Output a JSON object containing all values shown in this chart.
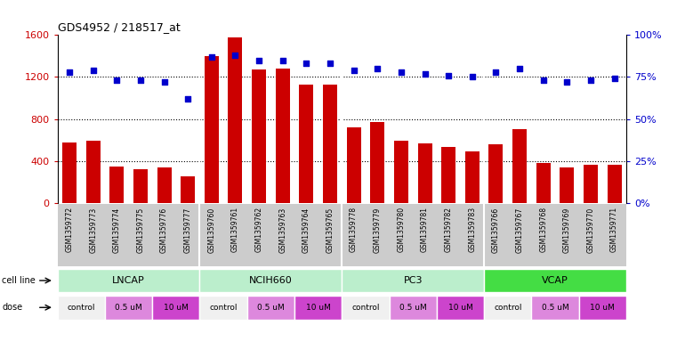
{
  "title": "GDS4952 / 218517_at",
  "samples": [
    "GSM1359772",
    "GSM1359773",
    "GSM1359774",
    "GSM1359775",
    "GSM1359776",
    "GSM1359777",
    "GSM1359760",
    "GSM1359761",
    "GSM1359762",
    "GSM1359763",
    "GSM1359764",
    "GSM1359765",
    "GSM1359778",
    "GSM1359779",
    "GSM1359780",
    "GSM1359781",
    "GSM1359782",
    "GSM1359783",
    "GSM1359766",
    "GSM1359767",
    "GSM1359768",
    "GSM1359769",
    "GSM1359770",
    "GSM1359771"
  ],
  "counts": [
    580,
    590,
    350,
    320,
    340,
    250,
    1400,
    1580,
    1270,
    1280,
    1130,
    1130,
    720,
    770,
    590,
    570,
    530,
    490,
    560,
    700,
    380,
    340,
    360,
    360
  ],
  "percentile_ranks": [
    78,
    79,
    73,
    73,
    72,
    62,
    87,
    88,
    85,
    85,
    83,
    83,
    79,
    80,
    78,
    77,
    76,
    75,
    78,
    80,
    73,
    72,
    73,
    74
  ],
  "bar_color": "#cc0000",
  "dot_color": "#0000cc",
  "ylim_left": [
    0,
    1600
  ],
  "ylim_right": [
    0,
    100
  ],
  "yticks_left": [
    0,
    400,
    800,
    1200,
    1600
  ],
  "ytick_labels_left": [
    "0",
    "400",
    "800",
    "1200",
    "1600"
  ],
  "yticks_right": [
    0,
    25,
    50,
    75,
    100
  ],
  "ytick_labels_right": [
    "0%",
    "25%",
    "50%",
    "75%",
    "100%"
  ],
  "cell_lines": [
    "LNCAP",
    "NCIH660",
    "PC3",
    "VCAP"
  ],
  "cell_line_spans": [
    [
      0,
      5
    ],
    [
      6,
      11
    ],
    [
      12,
      17
    ],
    [
      18,
      23
    ]
  ],
  "cell_line_colors": [
    "#bbeecc",
    "#bbeecc",
    "#bbeecc",
    "#44dd44"
  ],
  "dose_groups": [
    {
      "start": 0,
      "end": 1,
      "label": "control",
      "color": "#f0f0f0"
    },
    {
      "start": 2,
      "end": 3,
      "label": "0.5 uM",
      "color": "#dd88dd"
    },
    {
      "start": 4,
      "end": 5,
      "label": "10 uM",
      "color": "#cc44cc"
    },
    {
      "start": 6,
      "end": 7,
      "label": "control",
      "color": "#f0f0f0"
    },
    {
      "start": 8,
      "end": 9,
      "label": "0.5 uM",
      "color": "#dd88dd"
    },
    {
      "start": 10,
      "end": 11,
      "label": "10 uM",
      "color": "#cc44cc"
    },
    {
      "start": 12,
      "end": 13,
      "label": "control",
      "color": "#f0f0f0"
    },
    {
      "start": 14,
      "end": 15,
      "label": "0.5 uM",
      "color": "#dd88dd"
    },
    {
      "start": 16,
      "end": 17,
      "label": "10 uM",
      "color": "#cc44cc"
    },
    {
      "start": 18,
      "end": 19,
      "label": "control",
      "color": "#f0f0f0"
    },
    {
      "start": 20,
      "end": 21,
      "label": "0.5 uM",
      "color": "#dd88dd"
    },
    {
      "start": 22,
      "end": 23,
      "label": "10 uM",
      "color": "#cc44cc"
    }
  ],
  "tick_bg_color": "#cccccc",
  "bg_color": "#ffffff"
}
